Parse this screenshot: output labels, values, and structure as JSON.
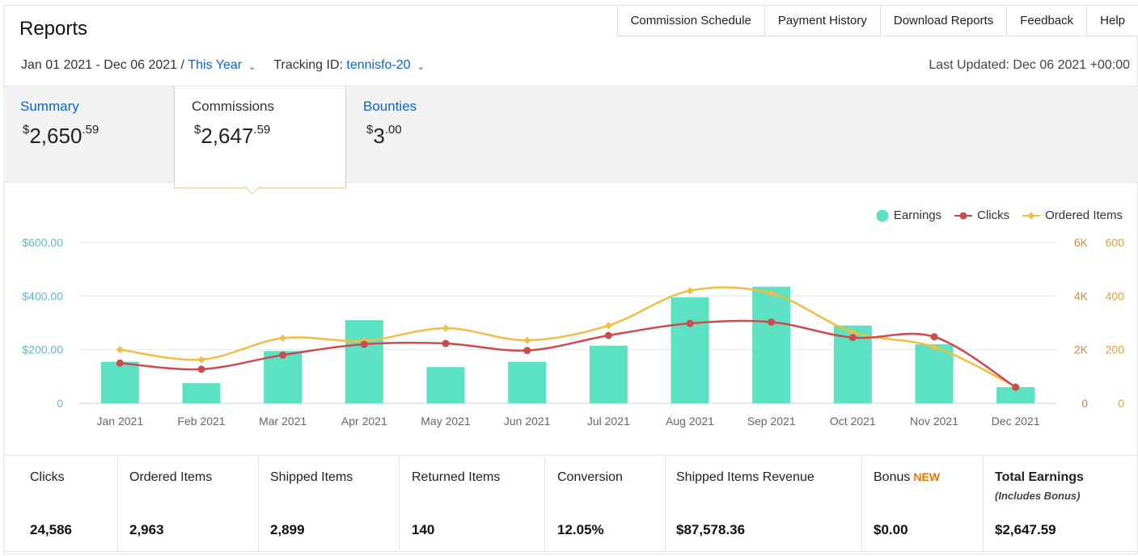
{
  "header": {
    "title": "Reports",
    "nav": [
      "Commission Schedule",
      "Payment History",
      "Download Reports",
      "Feedback",
      "Help"
    ]
  },
  "filters": {
    "date_range": "Jan 01 2021 - Dec 06 2021 / ",
    "period": "This Year",
    "tracking_label": "Tracking ID: ",
    "tracking_id": "tennisfo-20",
    "last_updated": "Last Updated: Dec 06 2021 +00:00"
  },
  "summary_tabs": {
    "summary": {
      "label": "Summary",
      "currency": "$",
      "whole": "2,650",
      "cents": ".59"
    },
    "commissions": {
      "label": "Commissions",
      "currency": "$",
      "whole": "2,647",
      "cents": ".59"
    },
    "bounties": {
      "label": "Bounties",
      "currency": "$",
      "whole": "3",
      "cents": ".00"
    }
  },
  "legend": {
    "earnings": "Earnings",
    "clicks": "Clicks",
    "ordered": "Ordered Items"
  },
  "colors": {
    "earnings": "#5ce2c3",
    "clicks": "#cc4b4e",
    "ordered": "#f2bd42",
    "link": "#0b66c2"
  },
  "chart_data": {
    "type": "bar",
    "categories": [
      "Jan 2021",
      "Feb 2021",
      "Mar 2021",
      "Apr 2021",
      "May 2021",
      "Jun 2021",
      "Jul 2021",
      "Aug 2021",
      "Sep 2021",
      "Oct 2021",
      "Nov 2021",
      "Dec 2021"
    ],
    "series": [
      {
        "name": "Earnings",
        "axis": "left",
        "type": "bar",
        "values": [
          155,
          75,
          195,
          310,
          135,
          155,
          215,
          395,
          435,
          290,
          220,
          60
        ]
      },
      {
        "name": "Clicks",
        "axis": "right-1",
        "type": "line",
        "values": [
          1500,
          1270,
          1800,
          2200,
          2230,
          1970,
          2530,
          2980,
          3030,
          2450,
          2480,
          600
        ]
      },
      {
        "name": "Ordered Items",
        "axis": "right-2",
        "type": "line",
        "values": [
          200,
          163,
          243,
          233,
          280,
          235,
          290,
          420,
          410,
          265,
          210,
          62
        ]
      }
    ],
    "yaxis_left": {
      "ticks": [
        "0",
        "$200.00",
        "$400.00",
        "$600.00"
      ],
      "range": [
        0,
        600
      ]
    },
    "yaxis_right_1": {
      "ticks": [
        "0",
        "2K",
        "4K",
        "6K"
      ],
      "range": [
        0,
        6000
      ]
    },
    "yaxis_right_2": {
      "ticks": [
        "0",
        "200",
        "400",
        "600"
      ],
      "range": [
        0,
        600
      ]
    },
    "grid": true,
    "legend_position": "top-right"
  },
  "stats": [
    {
      "label": "Clicks",
      "value": "24,586"
    },
    {
      "label": "Ordered Items",
      "value": "2,963"
    },
    {
      "label": "Shipped Items",
      "value": "2,899"
    },
    {
      "label": "Returned Items",
      "value": "140"
    },
    {
      "label": "Conversion",
      "value": "12.05%"
    },
    {
      "label": "Shipped Items Revenue",
      "value": "$87,578.36"
    },
    {
      "label": "Bonus",
      "badge": "NEW",
      "value": "$0.00"
    },
    {
      "label": "Total Earnings",
      "sub": "(Includes Bonus)",
      "value": "$2,647.59"
    }
  ]
}
